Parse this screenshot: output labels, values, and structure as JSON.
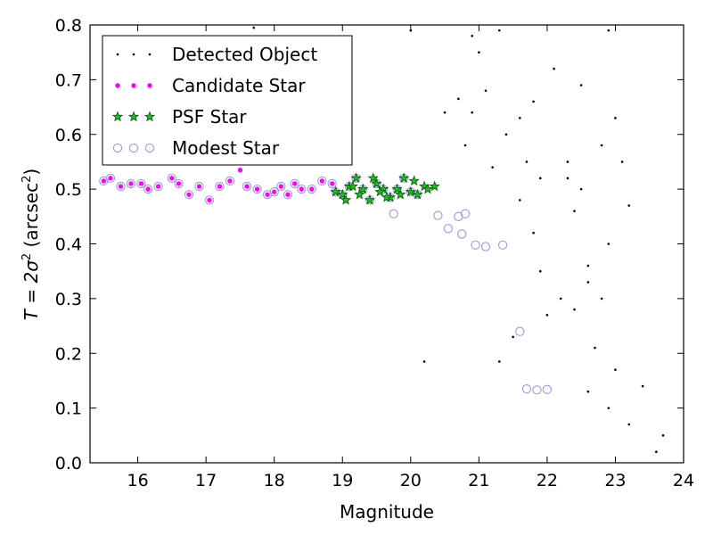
{
  "chart_data": {
    "type": "scatter",
    "xlabel": "Magnitude",
    "ylabel": {
      "main": "T = 2σ",
      "sup": "2",
      "unit_open": " (arcsec",
      "unit_sup": "2",
      "unit_close": ")"
    },
    "xlim": [
      15.3,
      24.0
    ],
    "ylim": [
      0.0,
      0.8
    ],
    "xticks": [
      "16",
      "17",
      "18",
      "19",
      "20",
      "21",
      "22",
      "23",
      "24"
    ],
    "yticks": [
      "0.0",
      "0.1",
      "0.2",
      "0.3",
      "0.4",
      "0.5",
      "0.6",
      "0.7",
      "0.8"
    ],
    "grid": false,
    "legend": {
      "placement": "top-left",
      "entries": [
        "Detected Object",
        "Candidate Star",
        "PSF Star",
        "Modest Star"
      ]
    },
    "colors": {
      "detected": "#000000",
      "candidate_face": "#ff00ff",
      "candidate_edge": "#ff00ff",
      "psf_face": "#22bb22",
      "psf_edge": "#0a5f0a",
      "modest_edge": "#9999ee"
    },
    "series": [
      {
        "name": "Detected Object",
        "marker": "dot",
        "points": [
          [
            17.7,
            0.795
          ],
          [
            20.0,
            0.79
          ],
          [
            20.2,
            0.185
          ],
          [
            21.3,
            0.185
          ],
          [
            20.7,
            0.665
          ],
          [
            20.9,
            0.64
          ],
          [
            20.5,
            0.64
          ],
          [
            20.8,
            0.58
          ],
          [
            21.2,
            0.54
          ],
          [
            21.6,
            0.48
          ],
          [
            21.8,
            0.42
          ],
          [
            21.9,
            0.35
          ],
          [
            22.4,
            0.28
          ],
          [
            22.7,
            0.21
          ],
          [
            23.0,
            0.17
          ],
          [
            23.4,
            0.14
          ],
          [
            23.7,
            0.05
          ],
          [
            23.6,
            0.02
          ],
          [
            23.2,
            0.07
          ],
          [
            22.9,
            0.1
          ],
          [
            22.6,
            0.13
          ],
          [
            22.2,
            0.3
          ],
          [
            22.0,
            0.27
          ],
          [
            21.5,
            0.23
          ],
          [
            21.8,
            0.66
          ],
          [
            22.1,
            0.72
          ],
          [
            22.5,
            0.69
          ],
          [
            23.0,
            0.63
          ],
          [
            22.8,
            0.58
          ],
          [
            22.3,
            0.55
          ],
          [
            21.9,
            0.52
          ],
          [
            21.4,
            0.6
          ],
          [
            21.1,
            0.68
          ],
          [
            21.0,
            0.75
          ],
          [
            20.9,
            0.78
          ],
          [
            21.3,
            0.79
          ],
          [
            22.9,
            0.79
          ],
          [
            23.1,
            0.55
          ],
          [
            23.2,
            0.47
          ],
          [
            22.9,
            0.4
          ],
          [
            22.6,
            0.36
          ],
          [
            22.6,
            0.33
          ],
          [
            22.8,
            0.3
          ],
          [
            22.4,
            0.46
          ],
          [
            22.3,
            0.52
          ],
          [
            22.5,
            0.5
          ],
          [
            21.6,
            0.63
          ],
          [
            21.7,
            0.55
          ]
        ]
      },
      {
        "name": "Candidate Star",
        "marker": "hexagon",
        "points": [
          [
            15.5,
            0.515
          ],
          [
            15.6,
            0.52
          ],
          [
            15.75,
            0.505
          ],
          [
            15.9,
            0.51
          ],
          [
            16.05,
            0.51
          ],
          [
            16.15,
            0.5
          ],
          [
            16.3,
            0.505
          ],
          [
            16.5,
            0.52
          ],
          [
            16.6,
            0.51
          ],
          [
            16.75,
            0.49
          ],
          [
            16.9,
            0.505
          ],
          [
            17.05,
            0.48
          ],
          [
            17.2,
            0.505
          ],
          [
            17.35,
            0.515
          ],
          [
            17.5,
            0.535
          ],
          [
            17.6,
            0.505
          ],
          [
            17.75,
            0.5
          ],
          [
            17.9,
            0.49
          ],
          [
            18.0,
            0.495
          ],
          [
            18.1,
            0.505
          ],
          [
            18.2,
            0.49
          ],
          [
            18.3,
            0.51
          ],
          [
            18.4,
            0.5
          ],
          [
            18.55,
            0.5
          ],
          [
            18.7,
            0.515
          ],
          [
            18.85,
            0.51
          ]
        ]
      },
      {
        "name": "PSF Star",
        "marker": "star",
        "points": [
          [
            18.9,
            0.495
          ],
          [
            19.0,
            0.49
          ],
          [
            19.1,
            0.505
          ],
          [
            19.2,
            0.52
          ],
          [
            19.3,
            0.5
          ],
          [
            19.4,
            0.48
          ],
          [
            19.5,
            0.51
          ],
          [
            19.6,
            0.5
          ],
          [
            19.7,
            0.485
          ],
          [
            19.8,
            0.5
          ],
          [
            19.9,
            0.52
          ],
          [
            20.0,
            0.495
          ],
          [
            20.1,
            0.49
          ],
          [
            20.2,
            0.505
          ],
          [
            20.35,
            0.505
          ],
          [
            19.05,
            0.48
          ],
          [
            19.25,
            0.49
          ],
          [
            19.45,
            0.52
          ],
          [
            19.65,
            0.485
          ],
          [
            19.85,
            0.49
          ],
          [
            20.05,
            0.515
          ],
          [
            20.25,
            0.5
          ],
          [
            19.15,
            0.505
          ],
          [
            19.55,
            0.495
          ]
        ]
      },
      {
        "name": "Modest Star",
        "marker": "open-circle",
        "points": [
          [
            15.5,
            0.515
          ],
          [
            15.6,
            0.52
          ],
          [
            15.75,
            0.505
          ],
          [
            15.9,
            0.51
          ],
          [
            16.05,
            0.51
          ],
          [
            16.15,
            0.5
          ],
          [
            16.3,
            0.505
          ],
          [
            16.5,
            0.52
          ],
          [
            16.6,
            0.51
          ],
          [
            16.75,
            0.49
          ],
          [
            16.9,
            0.505
          ],
          [
            17.05,
            0.48
          ],
          [
            17.2,
            0.505
          ],
          [
            17.35,
            0.515
          ],
          [
            17.6,
            0.505
          ],
          [
            17.75,
            0.5
          ],
          [
            17.9,
            0.49
          ],
          [
            18.0,
            0.495
          ],
          [
            18.1,
            0.505
          ],
          [
            18.2,
            0.49
          ],
          [
            18.3,
            0.51
          ],
          [
            18.4,
            0.5
          ],
          [
            18.55,
            0.5
          ],
          [
            18.7,
            0.515
          ],
          [
            18.85,
            0.51
          ],
          [
            18.9,
            0.495
          ],
          [
            19.0,
            0.49
          ],
          [
            19.1,
            0.505
          ],
          [
            19.2,
            0.52
          ],
          [
            19.3,
            0.5
          ],
          [
            19.4,
            0.48
          ],
          [
            19.5,
            0.51
          ],
          [
            19.6,
            0.5
          ],
          [
            19.7,
            0.485
          ],
          [
            19.8,
            0.5
          ],
          [
            19.9,
            0.52
          ],
          [
            20.0,
            0.495
          ],
          [
            20.1,
            0.49
          ],
          [
            19.75,
            0.455
          ],
          [
            20.4,
            0.452
          ],
          [
            20.55,
            0.428
          ],
          [
            20.7,
            0.45
          ],
          [
            20.8,
            0.455
          ],
          [
            20.75,
            0.418
          ],
          [
            20.95,
            0.398
          ],
          [
            21.1,
            0.395
          ],
          [
            21.35,
            0.398
          ],
          [
            21.6,
            0.24
          ],
          [
            21.7,
            0.135
          ],
          [
            21.85,
            0.133
          ],
          [
            22.0,
            0.134
          ]
        ]
      }
    ]
  }
}
